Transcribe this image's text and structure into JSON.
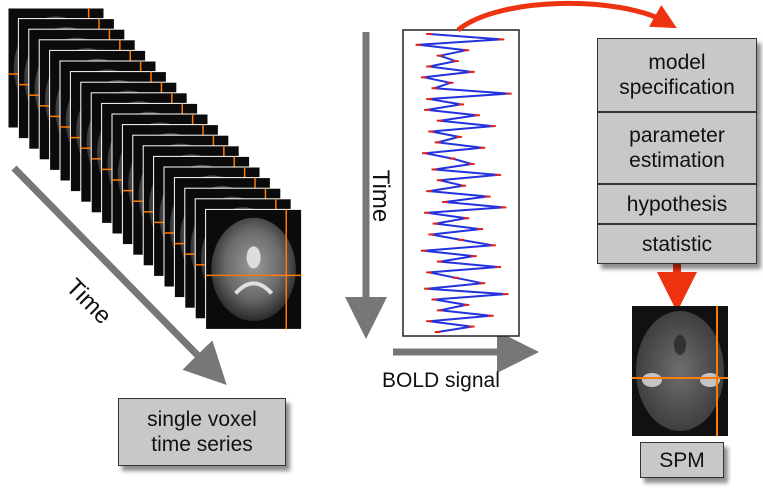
{
  "labels": {
    "time_left": "Time",
    "time_middle": "Time",
    "bold_signal": "BOLD signal",
    "single_voxel_line1": "single voxel",
    "single_voxel_line2": "time series",
    "spm": "SPM"
  },
  "pipeline_steps": [
    {
      "line1": "model",
      "line2": "specification"
    },
    {
      "line1": "parameter",
      "line2": "estimation"
    },
    {
      "line1": "hypothesis",
      "line2": ""
    },
    {
      "line1": "statistic",
      "line2": ""
    }
  ],
  "bold_series": [
    0.2,
    0.88,
    0.1,
    0.55,
    0.3,
    0.45,
    0.2,
    0.6,
    0.15,
    0.4,
    0.25,
    0.95,
    0.2,
    0.5,
    0.18,
    0.65,
    0.3,
    0.8,
    0.22,
    0.48,
    0.28,
    0.7,
    0.16,
    0.42,
    0.6,
    0.25,
    0.85,
    0.3,
    0.52,
    0.2,
    0.75,
    0.35,
    0.9,
    0.18,
    0.55,
    0.26,
    0.68,
    0.22,
    0.5,
    0.8,
    0.15,
    0.62,
    0.3,
    0.85,
    0.2,
    0.45,
    0.7,
    0.18,
    0.92,
    0.25,
    0.55,
    0.3,
    0.78,
    0.2,
    0.6,
    0.28
  ],
  "colors": {
    "arrow_gray": "#777777",
    "arrow_red": "#ee3311",
    "crosshair": "#ff7a00",
    "signal_line": "#2233dd",
    "signal_points": "#dd2222",
    "box_fill": "#c8c8c8"
  }
}
